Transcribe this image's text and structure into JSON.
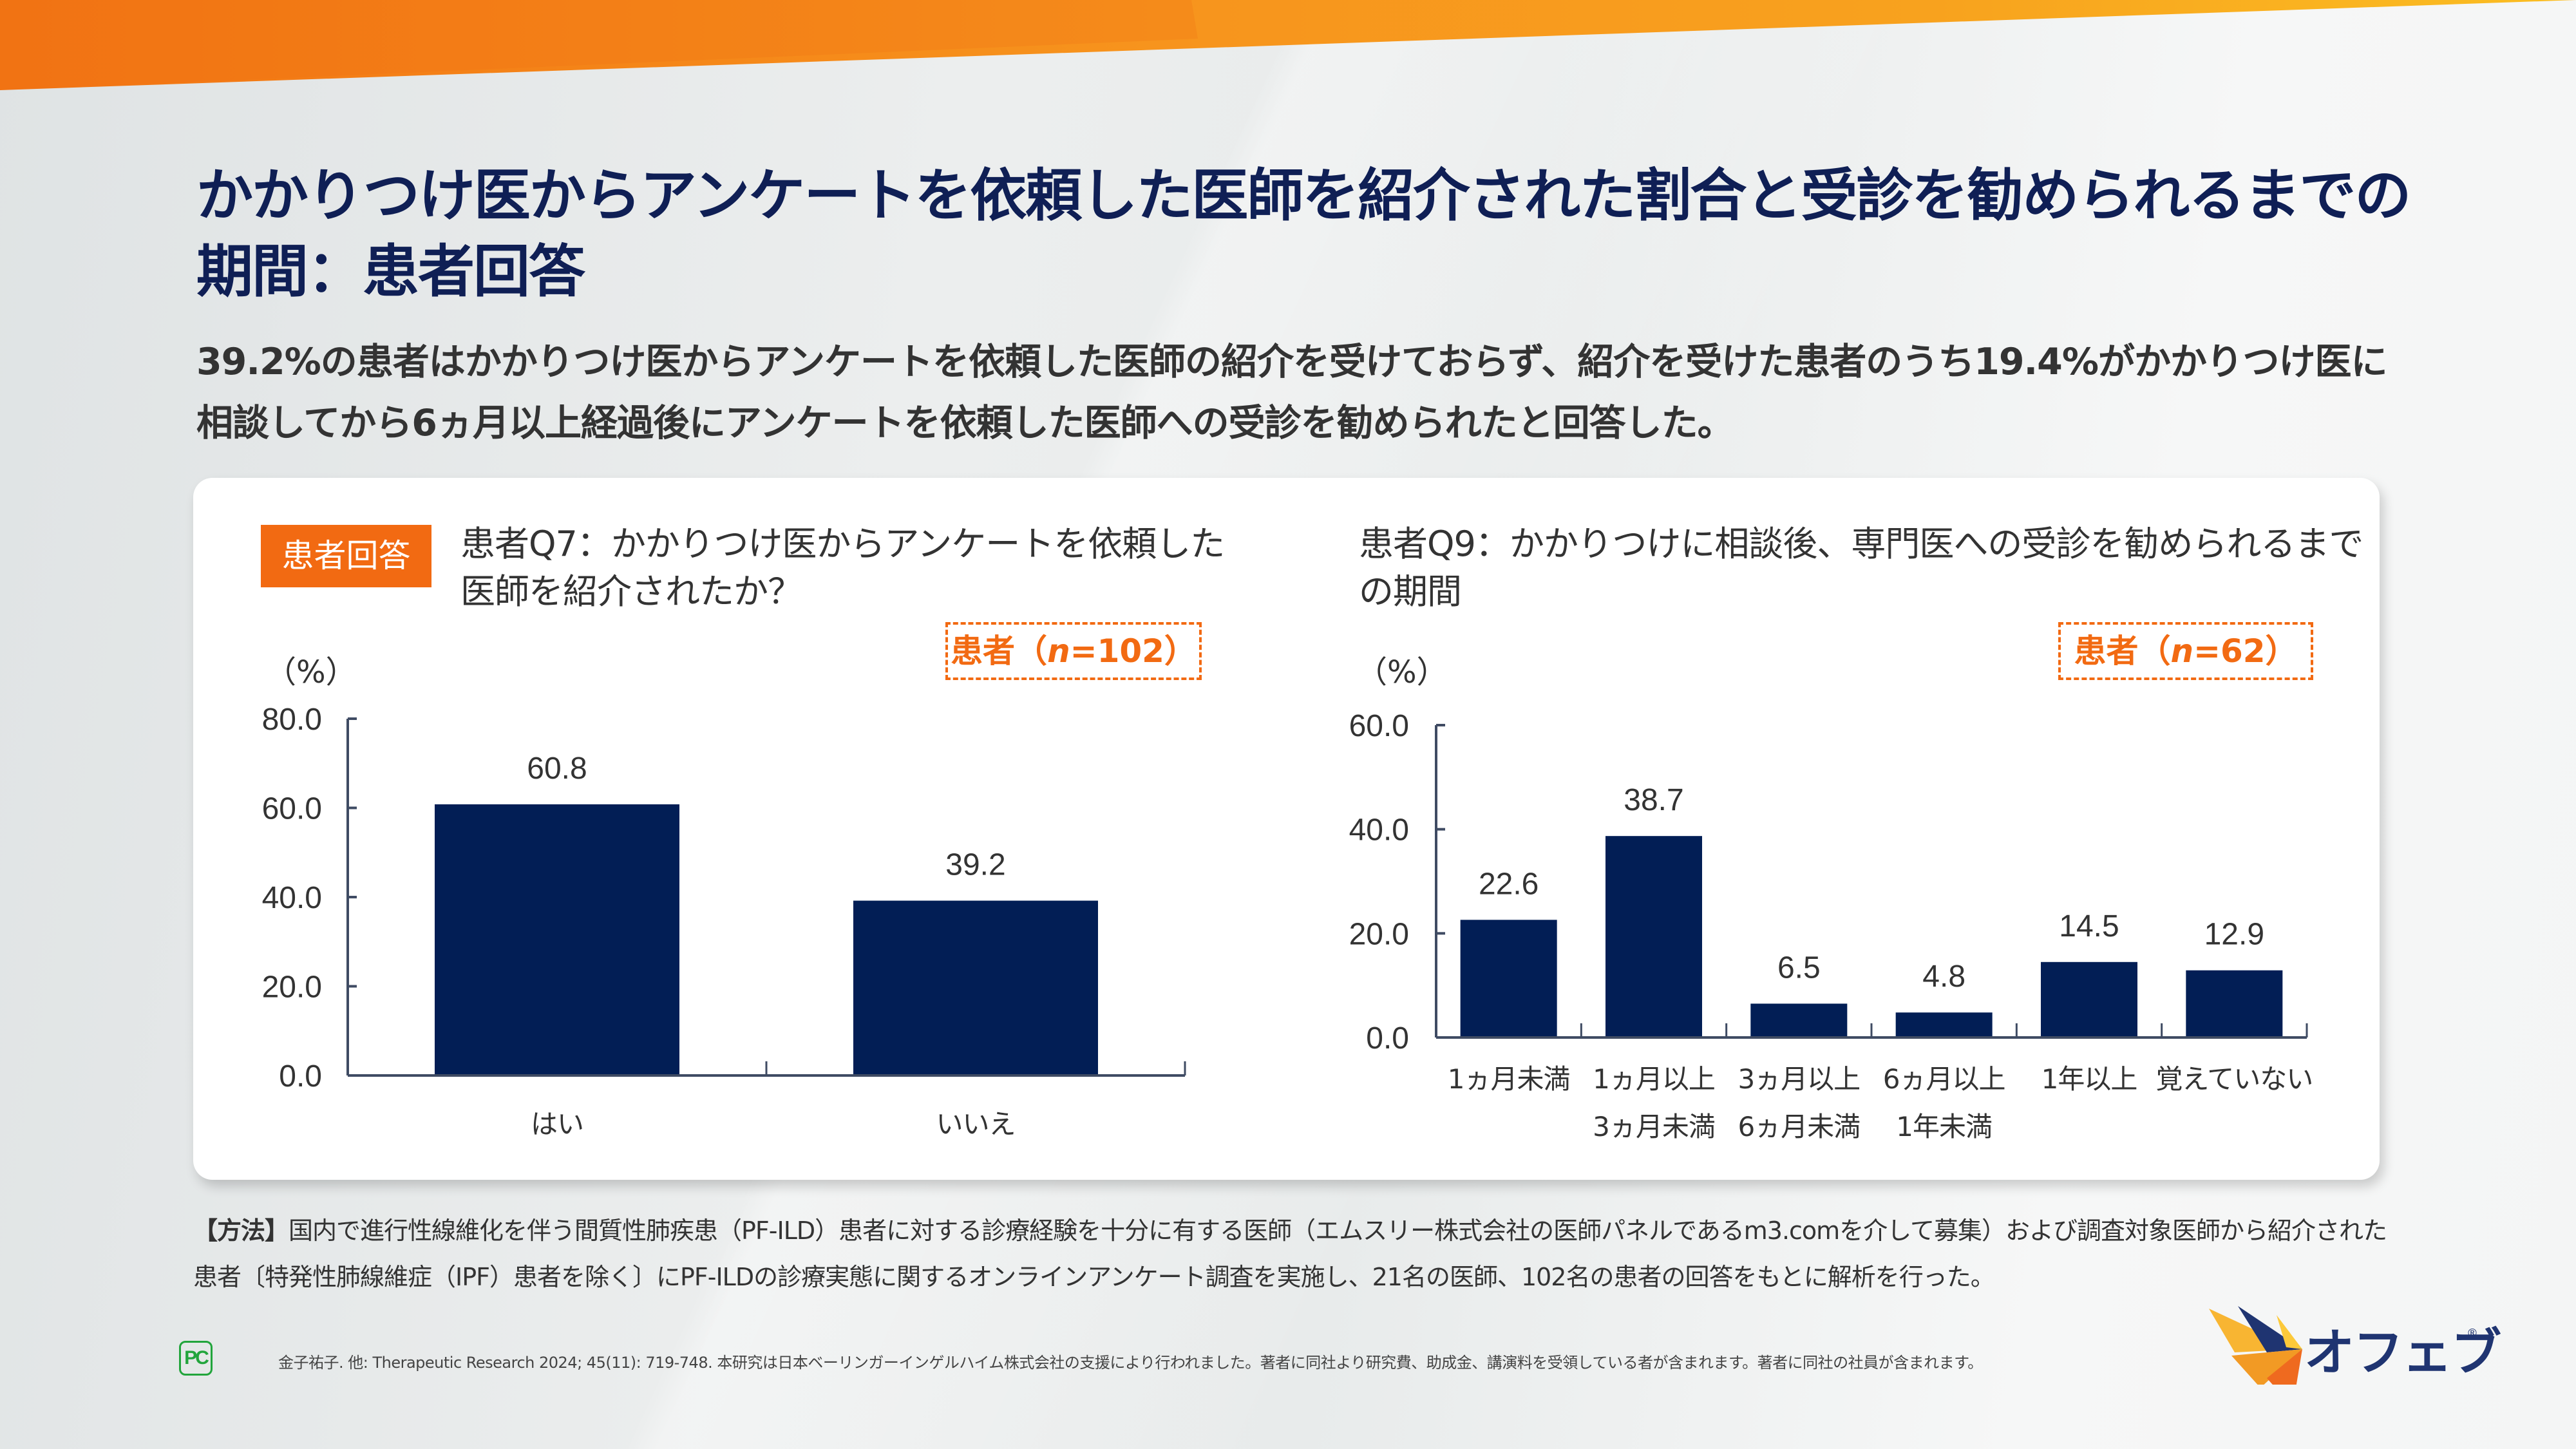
{
  "colors": {
    "title": "#0f1f55",
    "bar": "#021e55",
    "accent_orange": "#f26a12",
    "text": "#333333",
    "axis": "#3f4b63",
    "pc_logo_green": "#22a53c",
    "brand_navy": "#1f3471"
  },
  "header": {
    "title": "かかりつけ医からアンケートを依頼した医師を紹介された割合と受診を勧められるまでの期間：患者回答",
    "subtitle": "39.2%の患者はかかりつけ医からアンケートを依頼した医師の紹介を受けておらず、紹介を受けた患者のうち19.4%がかかりつけ医に相談してから6ヵ月以上経過後にアンケートを依頼した医師への受診を勧められたと回答した。"
  },
  "card": {
    "badge": "患者回答",
    "left": {
      "question": "患者Q7：かかりつけ医からアンケートを依頼した医師を紹介されたか？",
      "n_label_prefix": "患者（",
      "n_italic": "n",
      "n_label_suffix": "=102）",
      "unit": "（%）"
    },
    "right": {
      "question": "患者Q9：かかりつけに相談後、専門医への受診を勧められるまでの期間",
      "n_label_prefix": "患者（",
      "n_italic": "n",
      "n_label_suffix": "=62）",
      "unit": "（%）"
    }
  },
  "chart_data": [
    {
      "type": "bar",
      "title": "患者Q7：かかりつけ医からアンケートを依頼した医師を紹介されたか？",
      "xlabel": "",
      "ylabel": "（%）",
      "categories": [
        "はい",
        "いいえ"
      ],
      "values": [
        60.8,
        39.2
      ],
      "value_labels": [
        "60.8",
        "39.2"
      ],
      "ylim": [
        0,
        80
      ],
      "yticks": [
        0,
        20,
        40,
        60,
        80
      ],
      "ytick_labels": [
        "0.0",
        "20.0",
        "40.0",
        "60.0",
        "80.0"
      ],
      "grid": false,
      "sample": "n=102"
    },
    {
      "type": "bar",
      "title": "患者Q9：かかりつけに相談後、専門医への受診を勧められるまでの期間",
      "xlabel": "",
      "ylabel": "（%）",
      "categories": [
        [
          "1ヵ月未満"
        ],
        [
          "1ヵ月以上",
          "3ヵ月未満"
        ],
        [
          "3ヵ月以上",
          "6ヵ月未満"
        ],
        [
          "6ヵ月以上",
          "1年未満"
        ],
        [
          "1年以上"
        ],
        [
          "覚えていない"
        ]
      ],
      "values": [
        22.6,
        38.7,
        6.5,
        4.8,
        14.5,
        12.9
      ],
      "value_labels": [
        "22.6",
        "38.7",
        "6.5",
        "4.8",
        "14.5",
        "12.9"
      ],
      "ylim": [
        0,
        60
      ],
      "yticks": [
        0,
        20,
        40,
        60
      ],
      "ytick_labels": [
        "0.0",
        "20.0",
        "40.0",
        "60.0"
      ],
      "grid": false,
      "sample": "n=62"
    }
  ],
  "methods": {
    "label": "【方法】",
    "text_line1": "国内で進行性線維化を伴う間質性肺疾患（PF-ILD）患者に対する診療経験を十分に有する医師（エムスリー株式会社の医師パネルであるm3.comを介して募集）および調査対象医師から紹介された",
    "text_line2": "患者〔特発性肺線維症（IPF）患者を除く〕にPF-ILDの診療実態に関するオンラインアンケート調査を実施し、21名の医師、102名の患者の回答をもとに解析を行った。"
  },
  "footer": {
    "pc_logo": "PC",
    "reference": "金子祐子. 他: Therapeutic Research 2024; 45(11): 719-748.  本研究は日本ベーリンガーインゲルハイム株式会社の支援により行われました。著者に同社より研究費、助成金、講演料を受領している者が含まれます。著者に同社の社員が含まれます。",
    "brand_name": "オフェブ",
    "brand_reg": "®"
  }
}
